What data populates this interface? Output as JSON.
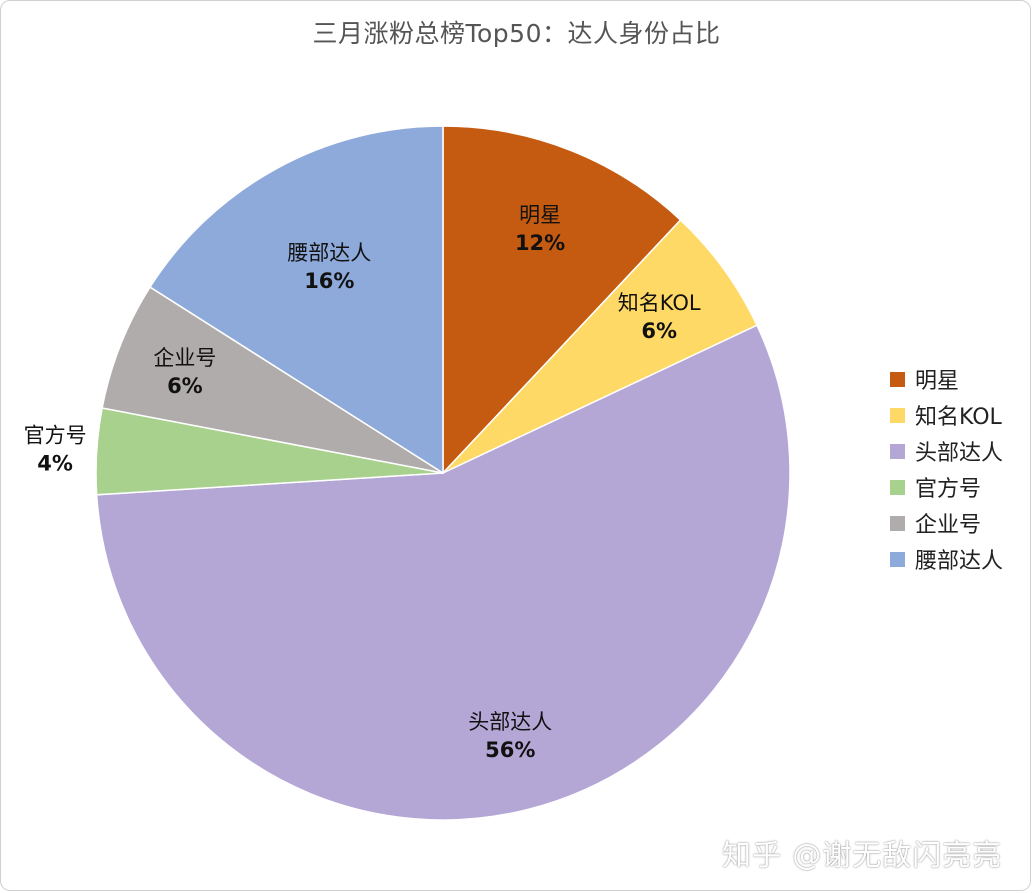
{
  "chart_data": {
    "type": "pie",
    "title": "三月涨粉总榜Top50：达人身份占比",
    "categories": [
      "明星",
      "知名KOL",
      "头部达人",
      "官方号",
      "企业号",
      "腰部达人"
    ],
    "values": [
      12,
      6,
      56,
      4,
      6,
      16
    ],
    "value_labels": [
      "12%",
      "6%",
      "56%",
      "4%",
      "6%",
      "16%"
    ],
    "colors": [
      "#c55a11",
      "#ffd966",
      "#b4a7d6",
      "#a9d18e",
      "#b0acab",
      "#8eaadb"
    ],
    "legend": {
      "position": "right",
      "entries": [
        "明星",
        "知名KOL",
        "头部达人",
        "官方号",
        "企业号",
        "腰部达人"
      ]
    }
  },
  "watermark": "知乎 @谢无敌闪亮亮"
}
